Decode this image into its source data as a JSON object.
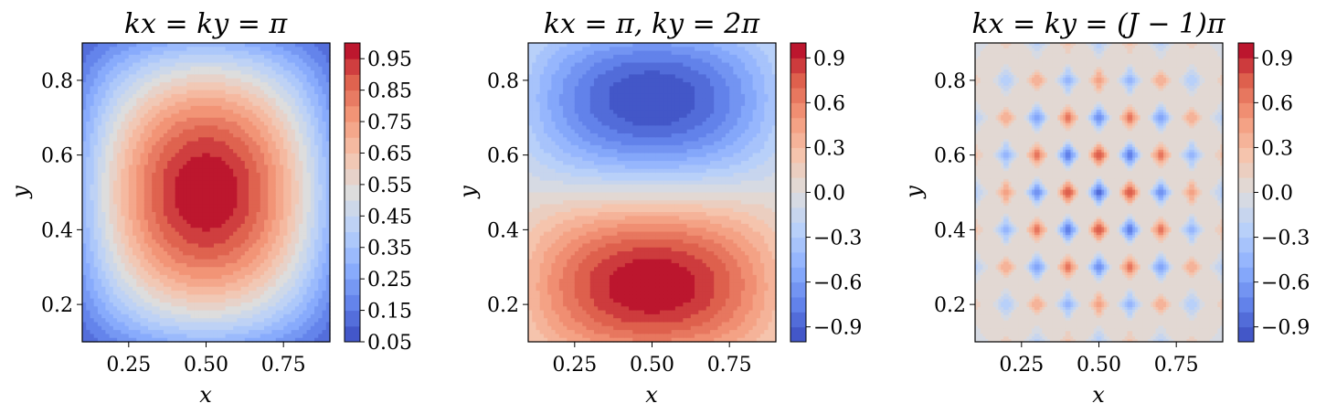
{
  "chart_data": [
    {
      "type": "contourf",
      "title": "kx = ky = π",
      "mode": "s11",
      "xlabel": "x",
      "ylabel": "y",
      "xlim": [
        0.1,
        0.9
      ],
      "ylim": [
        0.1,
        0.9
      ],
      "x_ticks": [
        "0.25",
        "0.50",
        "0.75"
      ],
      "x_tick_values": [
        0.25,
        0.5,
        0.75
      ],
      "y_ticks": [
        "0.2",
        "0.4",
        "0.6",
        "0.8"
      ],
      "y_tick_values": [
        0.2,
        0.4,
        0.6,
        0.8
      ],
      "colorbar": {
        "range": [
          0.05,
          1.0
        ],
        "levels": 19,
        "ticks": [
          "0.05",
          "0.15",
          "0.25",
          "0.35",
          "0.45",
          "0.55",
          "0.65",
          "0.75",
          "0.85",
          "0.95"
        ],
        "tick_values": [
          0.05,
          0.15,
          0.25,
          0.35,
          0.45,
          0.55,
          0.65,
          0.75,
          0.85,
          0.95
        ]
      },
      "colormap": "coolwarm"
    },
    {
      "type": "contourf",
      "title": "kx = π, ky = 2π",
      "mode": "s12",
      "xlabel": "x",
      "ylabel": "y",
      "xlim": [
        0.1,
        0.9
      ],
      "ylim": [
        0.1,
        0.9
      ],
      "x_ticks": [
        "0.25",
        "0.50",
        "0.75"
      ],
      "x_tick_values": [
        0.25,
        0.5,
        0.75
      ],
      "y_ticks": [
        "0.2",
        "0.4",
        "0.6",
        "0.8"
      ],
      "y_tick_values": [
        0.2,
        0.4,
        0.6,
        0.8
      ],
      "colorbar": {
        "range": [
          -1.0,
          1.0
        ],
        "levels": 20,
        "ticks": [
          "0.9",
          "0.6",
          "0.3",
          "0.0",
          "−0.3",
          "−0.6",
          "−0.9"
        ],
        "tick_values": [
          0.9,
          0.6,
          0.3,
          0.0,
          -0.3,
          -0.6,
          -0.9
        ]
      },
      "colormap": "coolwarm"
    },
    {
      "type": "contourf",
      "title": "kx = ky = (J − 1)π",
      "mode": "checker",
      "xlabel": "x",
      "ylabel": "y",
      "xlim": [
        0.1,
        0.9
      ],
      "ylim": [
        0.1,
        0.9
      ],
      "x_ticks": [
        "0.25",
        "0.50",
        "0.75"
      ],
      "x_tick_values": [
        0.25,
        0.5,
        0.75
      ],
      "y_ticks": [
        "0.2",
        "0.4",
        "0.6",
        "0.8"
      ],
      "y_tick_values": [
        0.2,
        0.4,
        0.6,
        0.8
      ],
      "colorbar": {
        "range": [
          -1.0,
          1.0
        ],
        "levels": 20,
        "ticks": [
          "0.9",
          "0.6",
          "0.3",
          "0.0",
          "−0.3",
          "−0.6",
          "−0.9"
        ],
        "tick_values": [
          0.9,
          0.6,
          0.3,
          0.0,
          -0.3,
          -0.6,
          -0.9
        ]
      },
      "colormap": "coolwarm"
    }
  ]
}
